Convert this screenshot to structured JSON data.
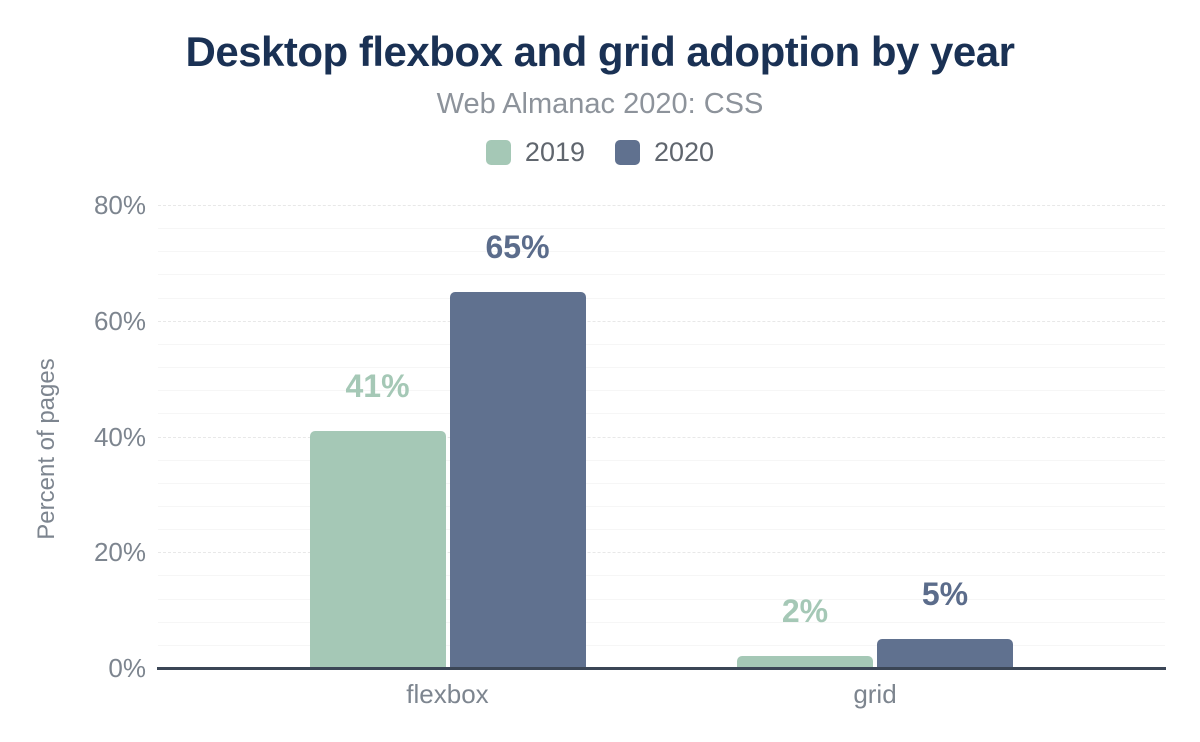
{
  "chart_data": {
    "type": "bar",
    "title": "Desktop flexbox and grid adoption by year",
    "subtitle": "Web Almanac 2020: CSS",
    "categories": [
      "flexbox",
      "grid"
    ],
    "series": [
      {
        "name": "2019",
        "color": "#a5c8b6",
        "label_color": "#a5c8b6",
        "values": [
          41,
          2
        ]
      },
      {
        "name": "2020",
        "color": "#60718f",
        "label_color": "#5b6c8b",
        "values": [
          65,
          5
        ]
      }
    ],
    "value_labels": [
      [
        "41%",
        "2%"
      ],
      [
        "65%",
        "5%"
      ]
    ],
    "ylabel": "Percent of pages",
    "ylim": [
      0,
      80
    ],
    "yticks": [
      0,
      20,
      40,
      60,
      80
    ],
    "ytick_suffix": "%",
    "grid": {
      "major_step": 20,
      "minor_step": 4,
      "grid_on": true
    },
    "legend_position": "top"
  },
  "colors": {
    "title": "#1a3154",
    "subtitle": "#8d939b",
    "axis_text": "#7d858f",
    "legend_text": "#60666e",
    "axis_line": "#3b4656",
    "background": "#ffffff"
  }
}
